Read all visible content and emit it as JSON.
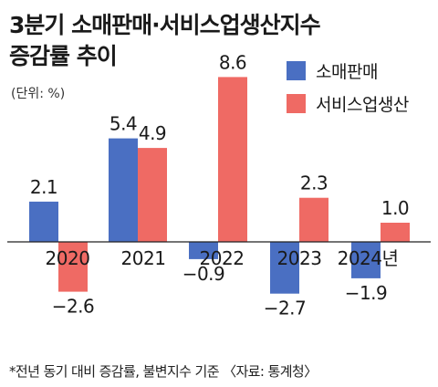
{
  "title_line1": "3분기 소매판매·서비스업생산지수",
  "title_line2": "증감률 추이",
  "unit": "(단위: %)",
  "footnote": "*전년 동기 대비 증감률, 불변지수 기준 〈자료: 통계청〉",
  "colors": {
    "retail": "#4a6fc2",
    "service": "#ef6a64"
  },
  "chart_data": {
    "type": "bar",
    "title": "3분기 소매판매·서비스업생산지수 증감률 추이",
    "ylabel": "(단위: %)",
    "categories": [
      "2020",
      "2021",
      "2022",
      "2023",
      "2024년"
    ],
    "series": [
      {
        "name": "소매판매",
        "values": [
          2.1,
          5.4,
          -0.9,
          -2.7,
          -1.9
        ]
      },
      {
        "name": "서비스업생산",
        "values": [
          -2.6,
          4.9,
          8.6,
          2.3,
          1.0
        ]
      }
    ],
    "value_labels": [
      [
        "2.1",
        "5.4",
        "−0.9",
        "−2.7",
        "−1.9"
      ],
      [
        "−2.6",
        "4.9",
        "8.6",
        "2.3",
        "1.0"
      ]
    ],
    "legend_position": "top-right",
    "grid": false
  }
}
